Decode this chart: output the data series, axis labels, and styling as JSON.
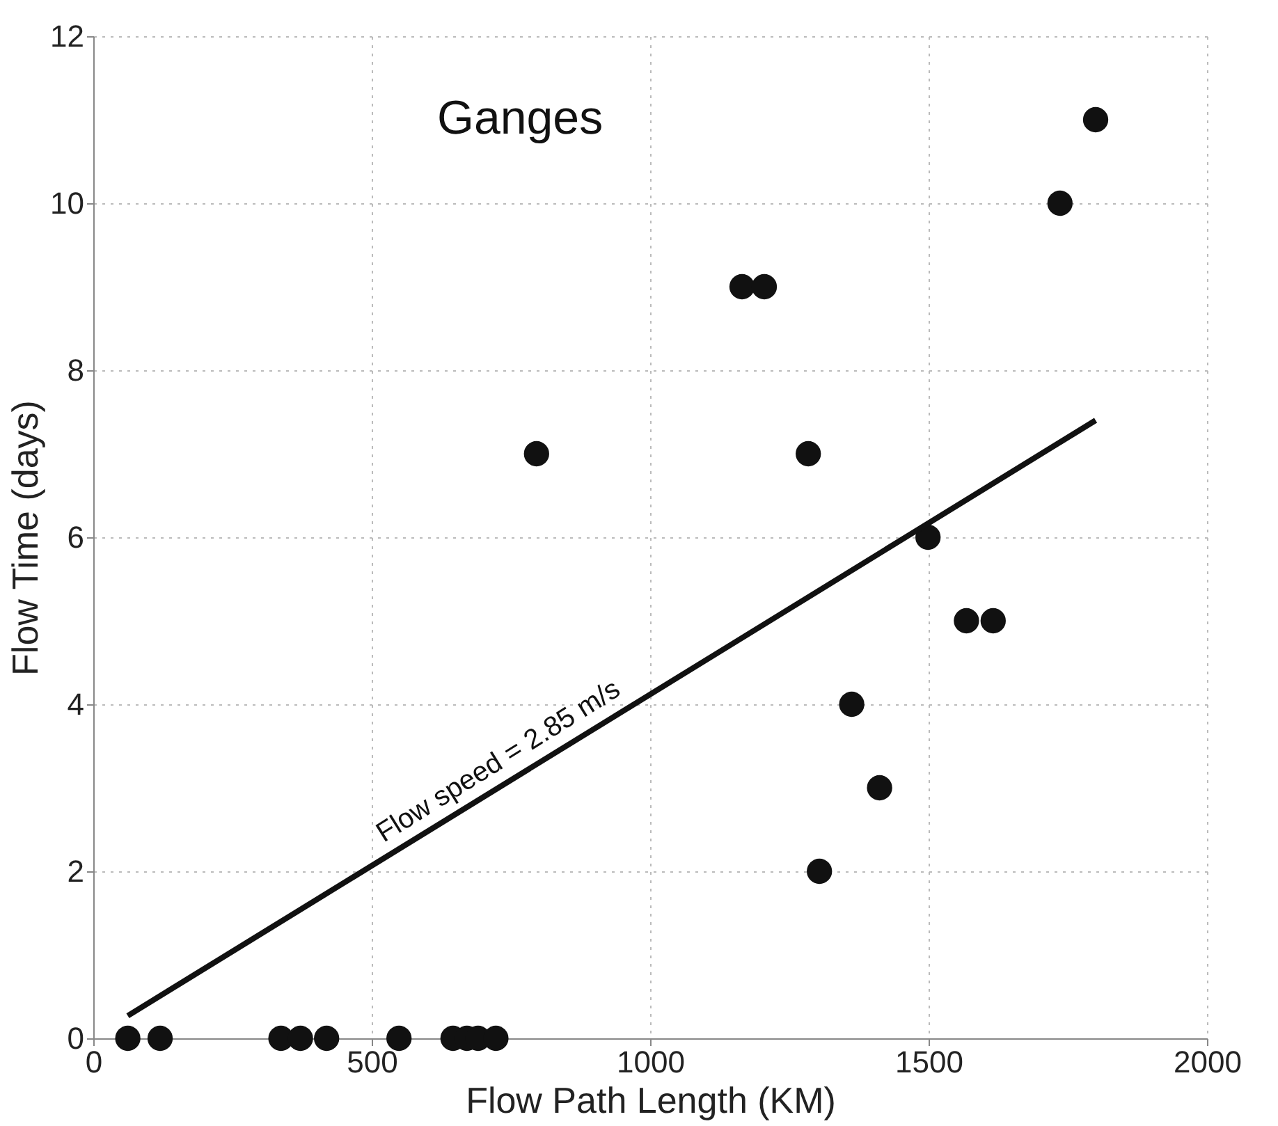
{
  "chart_data": {
    "type": "scatter",
    "xlabel": "Flow Path Length (KM)",
    "ylabel": "Flow Time (days)",
    "annotations": [
      "Ganges",
      "Flow speed = 2.85 m/s"
    ],
    "series": [
      {
        "color": "#111111",
        "marker": "circle",
        "x": [
          62,
          120,
          337,
          372,
          419,
          549,
          646,
          671,
          691,
          723,
          796,
          1165,
          1205,
          1284,
          1304,
          1362,
          1412,
          1499,
          1568,
          1616,
          1736,
          1800
        ],
        "values": [
          0,
          0,
          0,
          0,
          0,
          0,
          0,
          0,
          0,
          0,
          7,
          9,
          9,
          7,
          2,
          4,
          3,
          6,
          5,
          5,
          10,
          11
        ]
      },
      {
        "type": "line",
        "color": "#111111",
        "line_style": "solid",
        "x": [
          62,
          1800
        ],
        "values": [
          0.27,
          7.4
        ]
      }
    ],
    "xlim": [
      0,
      2000
    ],
    "xticks": [
      0,
      500,
      1000,
      1500,
      2000
    ],
    "ylim": [
      0,
      12
    ],
    "yticks": [
      0,
      2,
      4,
      6,
      8,
      10,
      12
    ],
    "grid": true
  }
}
